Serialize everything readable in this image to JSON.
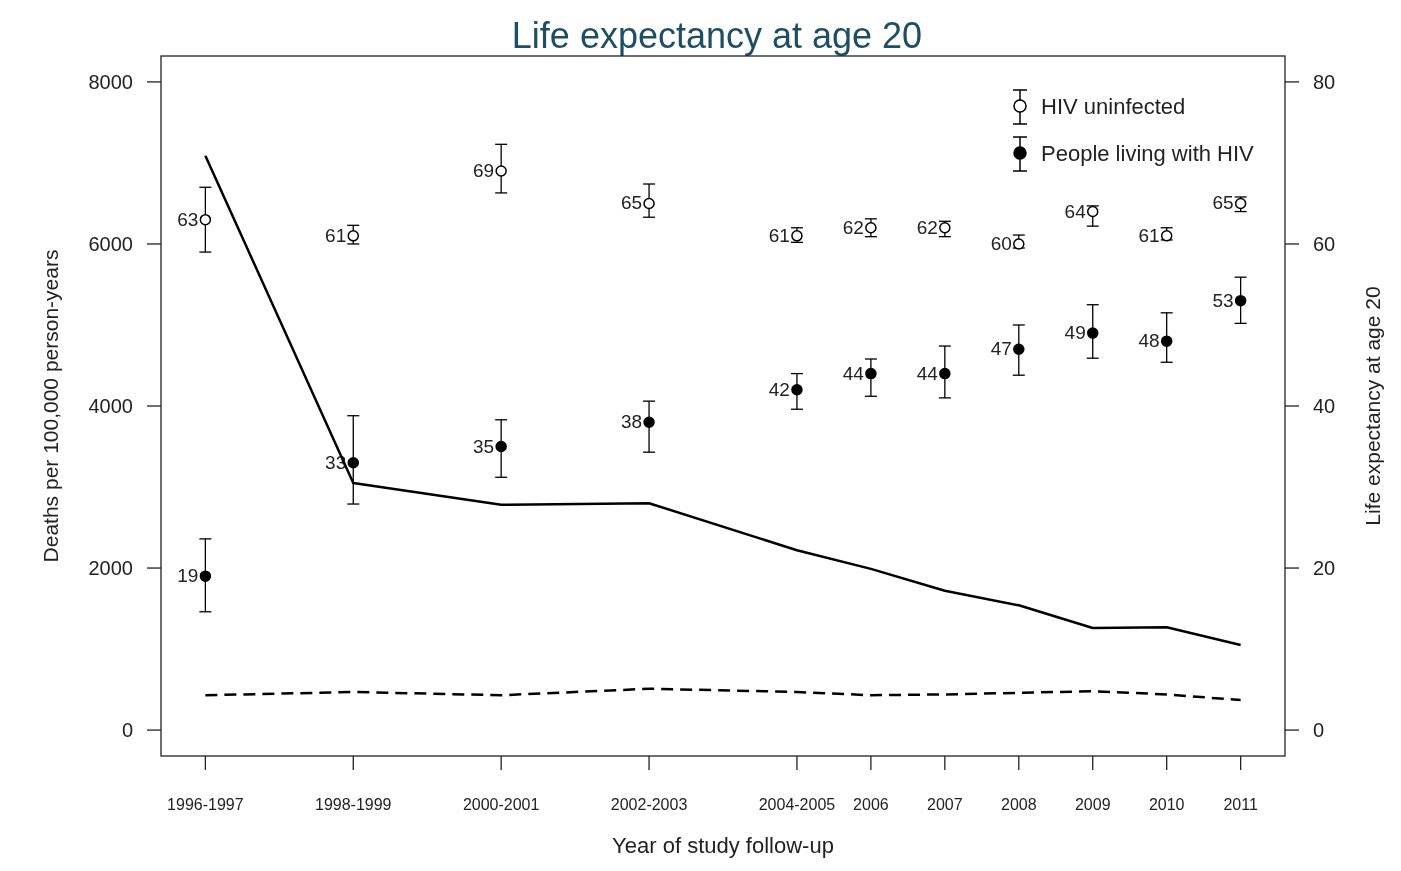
{
  "chart_data": {
    "type": "scatter",
    "title": "Life expectancy at age 20",
    "xlabel": "Year of study follow-up",
    "ylabel": "Deaths per 100,000 person-years",
    "y2label": "Life expectancy at age 20",
    "x": [
      1997,
      1999,
      2001,
      2003,
      2005,
      2006,
      2007,
      2008,
      2009,
      2010,
      2011
    ],
    "xlim": [
      1996.4,
      2011.6
    ],
    "xticks": [
      {
        "value": 1997,
        "label": "1996-1997"
      },
      {
        "value": 1999,
        "label": "1998-1999"
      },
      {
        "value": 2001,
        "label": "2000-2001"
      },
      {
        "value": 2003,
        "label": "2002-2003"
      },
      {
        "value": 2005,
        "label": "2004-2005"
      },
      2006,
      2007,
      2008,
      2009,
      2010,
      2011
    ],
    "ylim": [
      -320,
      8320
    ],
    "yticks": [
      0,
      2000,
      4000,
      6000,
      8000
    ],
    "y2lim": [
      -3.2,
      83.2
    ],
    "y2ticks": [
      0,
      20,
      40,
      60,
      80
    ],
    "grid": false,
    "legend": "top right",
    "series": [
      {
        "name": "HIV uninfected",
        "marker": "circle",
        "axis": "y2",
        "color": "#000000",
        "values": [
          63,
          61,
          69,
          65,
          61,
          62,
          62,
          60,
          64,
          61,
          65
        ],
        "value_labels": [
          "63",
          "61",
          "69",
          "65",
          "61",
          "62",
          "62",
          "60",
          "64",
          "61",
          "65"
        ],
        "errors": [
          [
            59,
            67
          ],
          [
            60,
            62.3
          ],
          [
            66.3,
            72.3
          ],
          [
            63.3,
            67.4
          ],
          [
            60.2,
            62
          ],
          [
            60.9,
            63.1
          ],
          [
            60.9,
            62.8
          ],
          [
            59.5,
            61.1
          ],
          [
            62.2,
            64.7
          ],
          [
            60.5,
            62
          ],
          [
            64,
            65.8
          ]
        ]
      },
      {
        "name": "People living with HIV",
        "marker": "circle",
        "axis": "y2",
        "color": "#000000",
        "values": [
          19,
          33,
          35,
          38,
          42,
          44,
          44,
          47,
          49,
          48,
          53
        ],
        "value_labels": [
          "19",
          "33",
          "35",
          "38",
          "42",
          "44",
          "44",
          "47",
          "49",
          "48",
          "53"
        ],
        "errors": [
          [
            14.6,
            23.6
          ],
          [
            27.9,
            38.8
          ],
          [
            31.2,
            38.3
          ],
          [
            34.3,
            40.6
          ],
          [
            39.6,
            44
          ],
          [
            41.2,
            45.8
          ],
          [
            41,
            47.4
          ],
          [
            43.8,
            50
          ],
          [
            45.9,
            52.5
          ],
          [
            45.4,
            51.5
          ],
          [
            50.2,
            55.9
          ]
        ]
      },
      {
        "type": "line",
        "line_style": "solid",
        "marker": "none",
        "color": "#000000",
        "values": [
          7090,
          3050,
          2780,
          2800,
          2220,
          1990,
          1720,
          1540,
          1260,
          1270,
          1050
        ]
      },
      {
        "type": "line",
        "line_style": "dashed",
        "marker": "none",
        "color": "#000000",
        "values": [
          430,
          470,
          430,
          510,
          470,
          430,
          440,
          460,
          480,
          440,
          370
        ]
      }
    ]
  }
}
